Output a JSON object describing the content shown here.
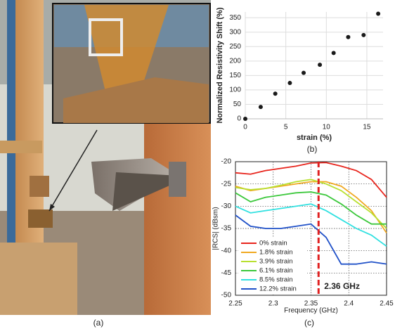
{
  "captions": [
    "(a)",
    "(b)",
    "(c)"
  ],
  "chart_data": [
    {
      "type": "scatter",
      "xlabel": "strain (%)",
      "ylabel": "Normalized Resistivity Shift (%)",
      "x": [
        0,
        1.9,
        3.7,
        5.5,
        7.2,
        9.2,
        10.9,
        12.7,
        14.6,
        16.4
      ],
      "series": [
        {
          "color": "#1a1a1a",
          "values": [
            0,
            41,
            87,
            124,
            159,
            187,
            228,
            283,
            290,
            364
          ]
        }
      ],
      "xlim": [
        0,
        17
      ],
      "xticks": [
        0,
        5,
        10,
        15
      ],
      "ylim": [
        0,
        370
      ],
      "yticks": [
        0,
        50,
        100,
        150,
        200,
        250,
        300,
        350
      ],
      "grid": true
    },
    {
      "type": "line",
      "xlabel": "Frequency (GHz)",
      "ylabel": "|RCS| (dBsm)",
      "x": [
        2.25,
        2.27,
        2.29,
        2.31,
        2.33,
        2.35,
        2.37,
        2.39,
        2.41,
        2.43,
        2.45
      ],
      "series": [
        {
          "name": "0% strain",
          "color": "#e8241c",
          "values": [
            -22.5,
            -22.8,
            -22,
            -21.5,
            -21,
            -20.3,
            -20.2,
            -21,
            -22,
            -24,
            -28
          ]
        },
        {
          "name": "1.8% strain",
          "color": "#f0a820",
          "values": [
            -25.5,
            -26.5,
            -26,
            -25.5,
            -25,
            -24.5,
            -24.5,
            -25.5,
            -28,
            -31,
            -36
          ]
        },
        {
          "name": "3.9% strain",
          "color": "#b8e030",
          "values": [
            -25.8,
            -26.3,
            -26,
            -25.3,
            -24.5,
            -24,
            -25,
            -26.5,
            -29,
            -31.5,
            -35
          ]
        },
        {
          "name": "6.1% strain",
          "color": "#3cc83c",
          "values": [
            -27,
            -29,
            -28,
            -27.5,
            -27,
            -26.8,
            -27.5,
            -29.5,
            -32,
            -34,
            -34
          ]
        },
        {
          "name": "8.5% strain",
          "color": "#30e0e0",
          "values": [
            -30,
            -31.5,
            -31,
            -30.5,
            -30,
            -29.5,
            -31,
            -33,
            -35,
            -36.5,
            -39
          ]
        },
        {
          "name": "12.2% strain",
          "color": "#1f50c8",
          "values": [
            -32,
            -34.5,
            -35,
            -35,
            -34.5,
            -34,
            -37,
            -43,
            -43,
            -42.5,
            -43
          ]
        }
      ],
      "xlim": [
        2.25,
        2.45
      ],
      "xticks": [
        2.25,
        2.3,
        2.35,
        2.4,
        2.45
      ],
      "ylim": [
        -50,
        -20
      ],
      "yticks": [
        -20,
        -25,
        -30,
        -35,
        -40,
        -45,
        -50
      ],
      "grid": true,
      "legend": "bottom-left",
      "annotation": {
        "x": 2.36,
        "text": "2.36 GHz",
        "color": "#e02020"
      }
    }
  ]
}
